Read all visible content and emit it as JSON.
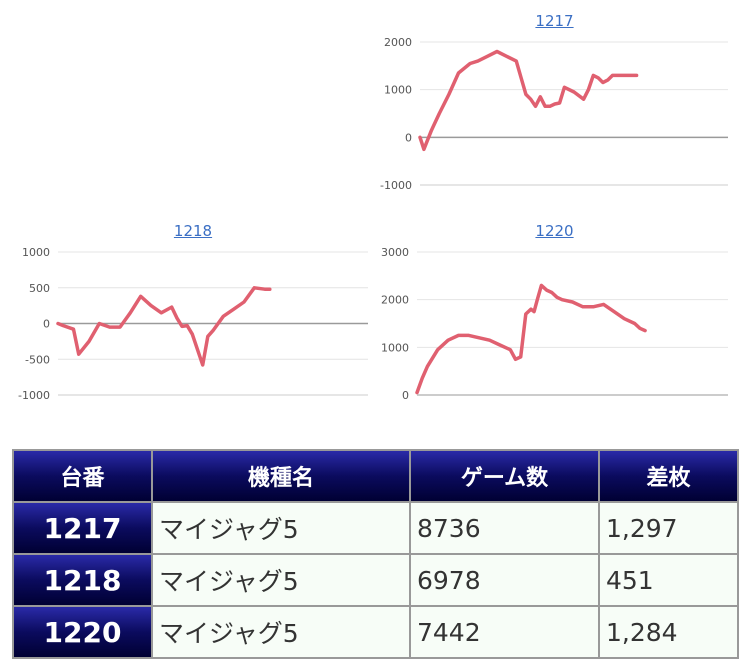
{
  "chart_data": [
    {
      "type": "line",
      "title": "1217",
      "ylim": [
        -1000,
        2000
      ],
      "yticks": [
        -1000,
        0,
        1000,
        2000
      ],
      "grid": true,
      "line_color": "#e06070",
      "x": [
        0,
        4,
        8,
        12,
        20,
        30,
        40,
        52,
        60,
        70,
        80,
        90,
        100,
        105,
        110,
        115,
        120,
        125,
        130,
        135,
        140,
        145,
        150,
        160,
        170,
        175,
        180,
        185,
        190,
        195,
        200,
        210,
        215,
        220,
        225
      ],
      "y": [
        0,
        -250,
        -50,
        150,
        500,
        900,
        1350,
        1550,
        1600,
        1700,
        1800,
        1700,
        1600,
        1250,
        900,
        800,
        650,
        850,
        650,
        650,
        700,
        720,
        1050,
        950,
        800,
        1000,
        1300,
        1250,
        1150,
        1200,
        1300,
        1300,
        1300,
        1300,
        1300
      ]
    },
    {
      "type": "line",
      "title": "1218",
      "ylim": [
        -1000,
        1000
      ],
      "yticks": [
        -1000,
        -500,
        0,
        500,
        1000
      ],
      "grid": true,
      "line_color": "#e06070",
      "x": [
        0,
        5,
        15,
        20,
        30,
        40,
        50,
        60,
        70,
        80,
        90,
        100,
        110,
        115,
        120,
        125,
        130,
        140,
        145,
        150,
        160,
        170,
        180,
        190,
        200,
        205
      ],
      "y": [
        0,
        -30,
        -80,
        -430,
        -250,
        0,
        -50,
        -50,
        150,
        380,
        250,
        150,
        230,
        80,
        -40,
        -30,
        -150,
        -580,
        -180,
        -100,
        100,
        200,
        300,
        500,
        480,
        480
      ]
    },
    {
      "type": "line",
      "title": "1220",
      "ylim": [
        0,
        3000
      ],
      "yticks": [
        0,
        1000,
        2000,
        3000
      ],
      "grid": true,
      "line_color": "#e06070",
      "x": [
        0,
        5,
        10,
        20,
        30,
        40,
        50,
        60,
        70,
        80,
        90,
        95,
        100,
        105,
        110,
        113,
        116,
        120,
        125,
        130,
        135,
        140,
        150,
        160,
        170,
        180,
        190,
        200,
        210,
        215,
        220
      ],
      "y": [
        50,
        350,
        600,
        950,
        1150,
        1250,
        1250,
        1200,
        1150,
        1050,
        950,
        750,
        800,
        1700,
        1800,
        1750,
        2000,
        2300,
        2200,
        2150,
        2050,
        2000,
        1950,
        1850,
        1850,
        1900,
        1750,
        1600,
        1500,
        1400,
        1350
      ]
    }
  ],
  "table": {
    "headers": [
      "台番",
      "機種名",
      "ゲーム数",
      "差枚"
    ],
    "rows": [
      {
        "number": "1217",
        "model": "マイジャグ5",
        "games": "8736",
        "diff": "1,297"
      },
      {
        "number": "1218",
        "model": "マイジャグ5",
        "games": "6978",
        "diff": "451"
      },
      {
        "number": "1220",
        "model": "マイジャグ5",
        "games": "7442",
        "diff": "1,284"
      }
    ]
  }
}
